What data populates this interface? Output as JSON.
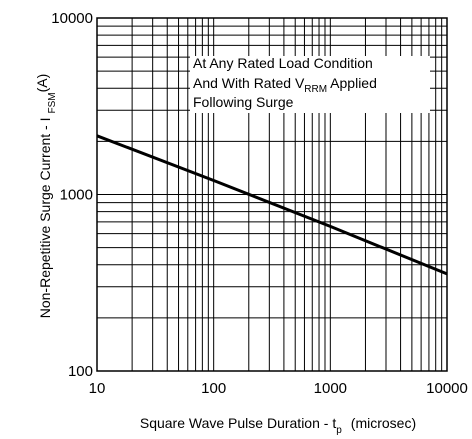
{
  "chart_data": {
    "type": "line",
    "title": "",
    "xlabel": {
      "text": "Square Wave Pulse Duration - t",
      "sub": "p",
      "unit": "(microsec)"
    },
    "ylabel": {
      "text": "Non-Repetitive Surge Current - I",
      "sub": "FSM",
      "unit": "(A)"
    },
    "x_scale": "log",
    "y_scale": "log",
    "xlim": [
      10,
      10000
    ],
    "ylim": [
      100,
      10000
    ],
    "x_ticks": [
      "10",
      "100",
      "1000",
      "10000"
    ],
    "y_ticks": [
      "100",
      "1000",
      "10000"
    ],
    "grid": true,
    "line_color": "#000000",
    "series": [
      {
        "x": [
          10,
          100,
          1000,
          10000
        ],
        "y": [
          2150,
          1200,
          660,
          355
        ]
      }
    ],
    "annotation": {
      "line1": "At Any Rated Load Condition",
      "line2_pre": "And With Rated V",
      "line2_sub": "RRM",
      "line2_post": " Applied",
      "line3": "Following Surge"
    }
  }
}
